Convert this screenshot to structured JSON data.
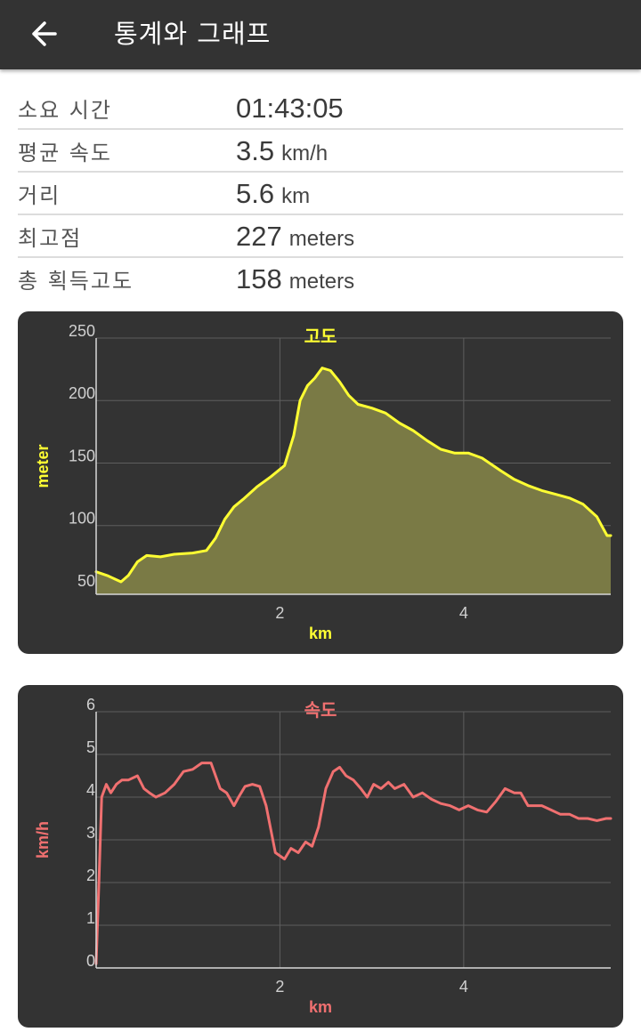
{
  "app_bar": {
    "title": "통계와 그래프",
    "back_icon": "arrow-left-icon"
  },
  "stats": [
    {
      "label": "소요 시간",
      "value": "01:43:05",
      "unit": ""
    },
    {
      "label": "평균 속도",
      "value": "3.5",
      "unit": "km/h"
    },
    {
      "label": "거리",
      "value": "5.6",
      "unit": "km"
    },
    {
      "label": "최고점",
      "value": "227",
      "unit": "meters"
    },
    {
      "label": "총 획득고도",
      "value": "158",
      "unit": "meters"
    }
  ],
  "chart_data": [
    {
      "type": "area",
      "title": "고도",
      "xlabel": "km",
      "ylabel": "meter",
      "xlim": [
        0,
        5.6
      ],
      "ylim": [
        45,
        250
      ],
      "x_ticks": [
        2,
        4
      ],
      "y_ticks": [
        50,
        100,
        150,
        200,
        250
      ],
      "grid": true,
      "color": "#ffff33",
      "fill": "#7a7a45",
      "label_color": "#ffff33",
      "x": [
        0,
        0.12,
        0.27,
        0.35,
        0.45,
        0.55,
        0.7,
        0.85,
        1.05,
        1.2,
        1.3,
        1.4,
        1.5,
        1.6,
        1.75,
        1.9,
        2.05,
        2.15,
        2.22,
        2.3,
        2.38,
        2.46,
        2.55,
        2.65,
        2.75,
        2.85,
        3.0,
        3.15,
        3.3,
        3.45,
        3.6,
        3.75,
        3.9,
        4.05,
        4.2,
        4.4,
        4.55,
        4.7,
        4.85,
        5.0,
        5.15,
        5.3,
        5.45,
        5.5,
        5.56,
        5.6
      ],
      "y": [
        63,
        60,
        55,
        60,
        71,
        76,
        75,
        77,
        78,
        80,
        90,
        105,
        115,
        121,
        131,
        139,
        148,
        172,
        200,
        212,
        218,
        226,
        224,
        215,
        204,
        197,
        194,
        190,
        182,
        176,
        168,
        161,
        158,
        158,
        154,
        144,
        137,
        132,
        128,
        125,
        122,
        117,
        107,
        100,
        92,
        92
      ]
    },
    {
      "type": "line",
      "title": "속도",
      "xlabel": "km",
      "ylabel": "km/h",
      "xlim": [
        0,
        5.6
      ],
      "ylim": [
        0,
        6
      ],
      "x_ticks": [
        2,
        4
      ],
      "y_ticks": [
        0,
        1,
        2,
        3,
        4,
        5,
        6
      ],
      "grid": true,
      "color": "#f07070",
      "label_color": "#f07070",
      "x": [
        0,
        0.03,
        0.06,
        0.11,
        0.16,
        0.22,
        0.28,
        0.35,
        0.45,
        0.52,
        0.58,
        0.65,
        0.75,
        0.85,
        0.95,
        1.05,
        1.15,
        1.25,
        1.35,
        1.42,
        1.5,
        1.55,
        1.62,
        1.7,
        1.78,
        1.85,
        1.95,
        2.05,
        2.12,
        2.2,
        2.28,
        2.35,
        2.42,
        2.5,
        2.58,
        2.65,
        2.72,
        2.8,
        2.88,
        2.95,
        3.02,
        3.1,
        3.18,
        3.25,
        3.35,
        3.45,
        3.55,
        3.65,
        3.75,
        3.85,
        3.95,
        4.05,
        4.15,
        4.25,
        4.35,
        4.45,
        4.55,
        4.62,
        4.7,
        4.78,
        4.85,
        4.95,
        5.05,
        5.15,
        5.25,
        5.35,
        5.45,
        5.55,
        5.6
      ],
      "y": [
        0.1,
        2.0,
        4.0,
        4.3,
        4.1,
        4.3,
        4.4,
        4.4,
        4.5,
        4.2,
        4.1,
        4.0,
        4.1,
        4.3,
        4.6,
        4.65,
        4.8,
        4.8,
        4.2,
        4.1,
        3.8,
        4.0,
        4.25,
        4.3,
        4.25,
        3.8,
        2.7,
        2.55,
        2.8,
        2.7,
        2.95,
        2.85,
        3.3,
        4.2,
        4.6,
        4.7,
        4.5,
        4.4,
        4.2,
        4.0,
        4.3,
        4.2,
        4.35,
        4.2,
        4.3,
        4.0,
        4.1,
        3.95,
        3.85,
        3.8,
        3.7,
        3.8,
        3.7,
        3.65,
        3.9,
        4.2,
        4.1,
        4.1,
        3.8,
        3.8,
        3.8,
        3.7,
        3.6,
        3.6,
        3.5,
        3.5,
        3.45,
        3.5,
        3.5
      ]
    }
  ]
}
